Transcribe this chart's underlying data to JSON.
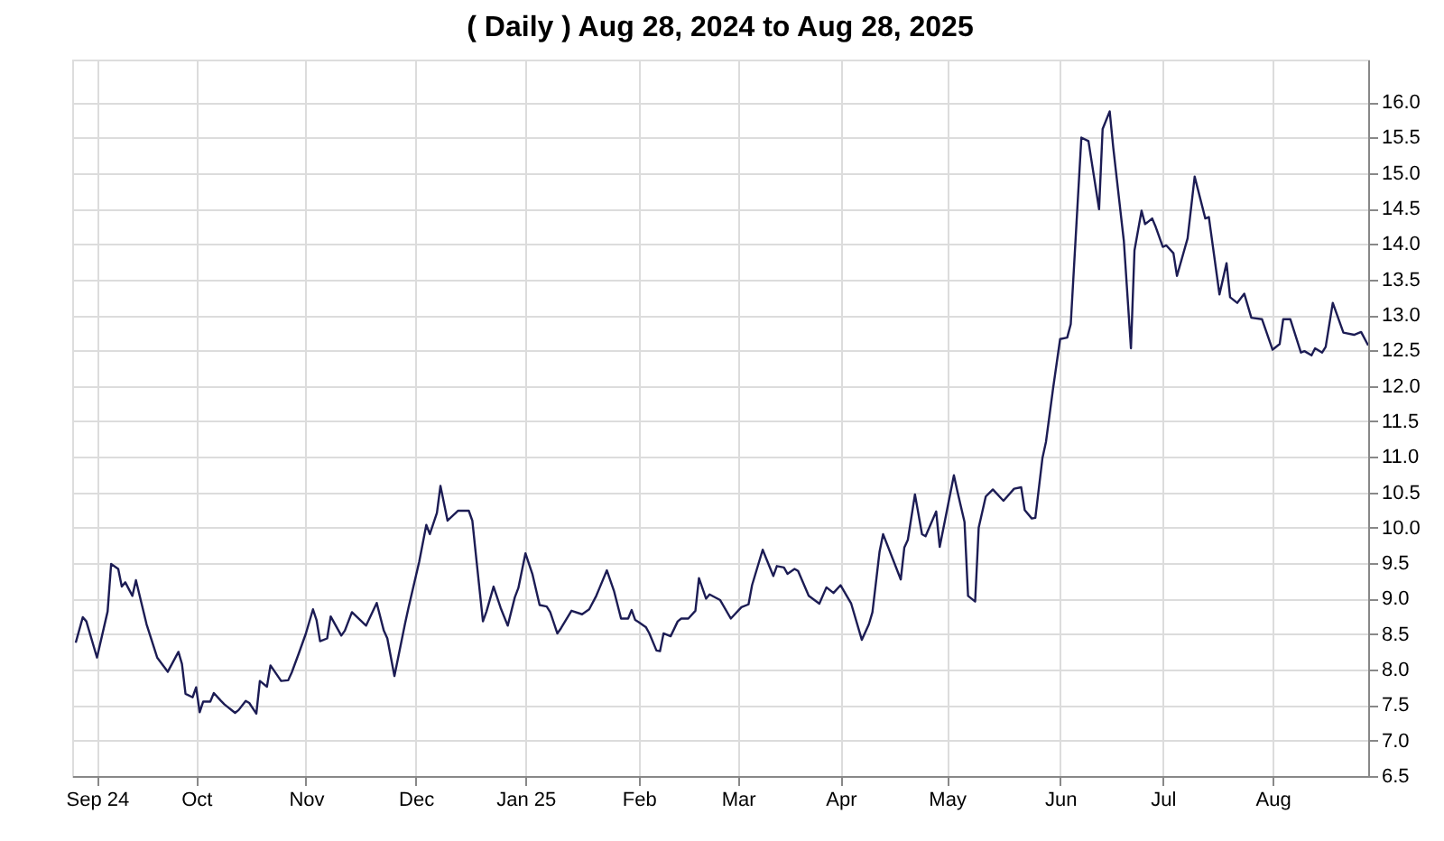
{
  "chart_data": {
    "type": "line",
    "title": "( Daily ) Aug 28, 2024 to Aug 28, 2025",
    "x": [
      "2024-08-28",
      "2024-08-30",
      "2024-08-31",
      "2024-09-03",
      "2024-09-06",
      "2024-09-07",
      "2024-09-09",
      "2024-09-10",
      "2024-09-11",
      "2024-09-13",
      "2024-09-14",
      "2024-09-17",
      "2024-09-20",
      "2024-09-23",
      "2024-09-26",
      "2024-09-27",
      "2024-09-28",
      "2024-09-30",
      "2024-10-01",
      "2024-10-02",
      "2024-10-03",
      "2024-10-05",
      "2024-10-06",
      "2024-10-08",
      "2024-10-09",
      "2024-10-12",
      "2024-10-13",
      "2024-10-15",
      "2024-10-16",
      "2024-10-18",
      "2024-10-19",
      "2024-10-21",
      "2024-10-22",
      "2024-10-25",
      "2024-10-27",
      "2024-10-28",
      "2024-10-30",
      "2024-11-01",
      "2024-11-03",
      "2024-11-04",
      "2024-11-05",
      "2024-11-07",
      "2024-11-08",
      "2024-11-11",
      "2024-11-12",
      "2024-11-14",
      "2024-11-18",
      "2024-11-21",
      "2024-11-23",
      "2024-11-24",
      "2024-11-26",
      "2024-11-29",
      "2024-11-30",
      "2024-12-03",
      "2024-12-05",
      "2024-12-06",
      "2024-12-08",
      "2024-12-09",
      "2024-12-11",
      "2024-12-14",
      "2024-12-17",
      "2024-12-18",
      "2024-12-19",
      "2024-12-21",
      "2024-12-22",
      "2024-12-24",
      "2024-12-26",
      "2024-12-28",
      "2024-12-30",
      "2024-12-31",
      "2025-01-02",
      "2025-01-04",
      "2025-01-06",
      "2025-01-08",
      "2025-01-09",
      "2025-01-11",
      "2025-01-12",
      "2025-01-15",
      "2025-01-18",
      "2025-01-20",
      "2025-01-22",
      "2025-01-23",
      "2025-01-25",
      "2025-01-27",
      "2025-01-29",
      "2025-01-31",
      "2025-02-01",
      "2025-02-02",
      "2025-02-03",
      "2025-02-05",
      "2025-02-06",
      "2025-02-08",
      "2025-02-09",
      "2025-02-10",
      "2025-02-12",
      "2025-02-14",
      "2025-02-15",
      "2025-02-17",
      "2025-02-19",
      "2025-02-20",
      "2025-02-22",
      "2025-02-23",
      "2025-02-26",
      "2025-03-01",
      "2025-03-04",
      "2025-03-06",
      "2025-03-07",
      "2025-03-10",
      "2025-03-13",
      "2025-03-14",
      "2025-03-16",
      "2025-03-17",
      "2025-03-19",
      "2025-03-20",
      "2025-03-23",
      "2025-03-26",
      "2025-03-28",
      "2025-03-30",
      "2025-04-01",
      "2025-04-04",
      "2025-04-07",
      "2025-04-09",
      "2025-04-10",
      "2025-04-12",
      "2025-04-13",
      "2025-04-18",
      "2025-04-19",
      "2025-04-20",
      "2025-04-22",
      "2025-04-24",
      "2025-04-25",
      "2025-04-28",
      "2025-04-29",
      "2025-05-03",
      "2025-05-04",
      "2025-05-06",
      "2025-05-07",
      "2025-05-09",
      "2025-05-10",
      "2025-05-12",
      "2025-05-14",
      "2025-05-17",
      "2025-05-20",
      "2025-05-22",
      "2025-05-23",
      "2025-05-25",
      "2025-05-26",
      "2025-05-28",
      "2025-05-29",
      "2025-05-31",
      "2025-06-02",
      "2025-06-04",
      "2025-06-05",
      "2025-06-08",
      "2025-06-10",
      "2025-06-13",
      "2025-06-14",
      "2025-06-16",
      "2025-06-17",
      "2025-06-20",
      "2025-06-22",
      "2025-06-23",
      "2025-06-25",
      "2025-06-26",
      "2025-06-28",
      "2025-06-29",
      "2025-07-01",
      "2025-07-02",
      "2025-07-04",
      "2025-07-05",
      "2025-07-08",
      "2025-07-10",
      "2025-07-13",
      "2025-07-14",
      "2025-07-17",
      "2025-07-19",
      "2025-07-20",
      "2025-07-22",
      "2025-07-24",
      "2025-07-26",
      "2025-07-29",
      "2025-08-01",
      "2025-08-03",
      "2025-08-04",
      "2025-08-06",
      "2025-08-09",
      "2025-08-10",
      "2025-08-12",
      "2025-08-13",
      "2025-08-15",
      "2025-08-16",
      "2025-08-18",
      "2025-08-21",
      "2025-08-24",
      "2025-08-26",
      "2025-08-28"
    ],
    "series": [
      {
        "color": "#1c1c54",
        "values": [
          8.38,
          8.74,
          8.68,
          8.17,
          8.82,
          9.49,
          9.42,
          9.17,
          9.23,
          9.04,
          9.26,
          8.64,
          8.17,
          7.97,
          8.25,
          8.08,
          7.66,
          7.61,
          7.75,
          7.4,
          7.55,
          7.55,
          7.67,
          7.56,
          7.51,
          7.39,
          7.43,
          7.56,
          7.53,
          7.38,
          7.84,
          7.76,
          8.06,
          7.84,
          7.85,
          7.96,
          8.23,
          8.51,
          8.85,
          8.7,
          8.4,
          8.44,
          8.75,
          8.48,
          8.55,
          8.81,
          8.62,
          8.94,
          8.55,
          8.44,
          7.91,
          8.65,
          8.88,
          9.52,
          10.04,
          9.91,
          10.21,
          10.59,
          10.1,
          10.24,
          10.24,
          10.1,
          9.62,
          8.68,
          8.82,
          9.17,
          8.87,
          8.62,
          9.02,
          9.15,
          9.64,
          9.34,
          8.91,
          8.89,
          8.81,
          8.51,
          8.58,
          8.83,
          8.78,
          8.85,
          9.04,
          9.16,
          9.4,
          9.11,
          8.72,
          8.72,
          8.84,
          8.7,
          8.67,
          8.6,
          8.51,
          8.27,
          8.26,
          8.51,
          8.47,
          8.68,
          8.72,
          8.72,
          8.83,
          9.29,
          9.0,
          9.06,
          8.98,
          8.72,
          8.88,
          8.92,
          9.19,
          9.69,
          9.32,
          9.46,
          9.44,
          9.35,
          9.42,
          9.39,
          9.04,
          8.93,
          9.16,
          9.08,
          9.19,
          8.93,
          8.42,
          8.64,
          8.81,
          9.66,
          9.91,
          9.27,
          9.72,
          9.83,
          10.47,
          9.91,
          9.88,
          10.23,
          9.73,
          10.74,
          10.51,
          10.08,
          9.04,
          8.96,
          10.0,
          10.44,
          10.54,
          10.38,
          10.55,
          10.57,
          10.25,
          10.13,
          10.14,
          10.98,
          11.21,
          11.96,
          12.66,
          12.68,
          12.87,
          15.5,
          15.45,
          14.49,
          15.62,
          15.87,
          15.36,
          14.04,
          12.53,
          13.91,
          14.47,
          14.28,
          14.36,
          14.24,
          13.96,
          13.98,
          13.87,
          13.55,
          14.08,
          14.95,
          14.36,
          14.38,
          13.29,
          13.73,
          13.25,
          13.17,
          13.3,
          12.96,
          12.94,
          12.51,
          12.59,
          12.94,
          12.94,
          12.47,
          12.49,
          12.43,
          12.53,
          12.47,
          12.55,
          13.17,
          12.75,
          12.72,
          12.76,
          12.57
        ]
      }
    ],
    "xlim": [
      "2024-08-27",
      "2025-08-28"
    ],
    "xticks": [
      {
        "value": "2024-09-03",
        "label": "Sep 24"
      },
      {
        "value": "2024-10-01",
        "label": "Oct"
      },
      {
        "value": "2024-11-01",
        "label": "Nov"
      },
      {
        "value": "2024-12-02",
        "label": "Dec"
      },
      {
        "value": "2025-01-02",
        "label": "Jan 25"
      },
      {
        "value": "2025-02-03",
        "label": "Feb"
      },
      {
        "value": "2025-03-03",
        "label": "Mar"
      },
      {
        "value": "2025-04-01",
        "label": "Apr"
      },
      {
        "value": "2025-05-01",
        "label": "May"
      },
      {
        "value": "2025-06-02",
        "label": "Jun"
      },
      {
        "value": "2025-07-01",
        "label": "Jul"
      },
      {
        "value": "2025-08-01",
        "label": "Aug"
      }
    ],
    "ylim": [
      6.5,
      16.6
    ],
    "yticks": [
      {
        "value": 6.5,
        "label": "6.5"
      },
      {
        "value": 7,
        "label": "7.0"
      },
      {
        "value": 7.5,
        "label": "7.5"
      },
      {
        "value": 8,
        "label": "8.0"
      },
      {
        "value": 8.5,
        "label": "8.5"
      },
      {
        "value": 9,
        "label": "9.0"
      },
      {
        "value": 9.5,
        "label": "9.5"
      },
      {
        "value": 10,
        "label": "10.0"
      },
      {
        "value": 10.5,
        "label": "10.5"
      },
      {
        "value": 11,
        "label": "11.0"
      },
      {
        "value": 11.5,
        "label": "11.5"
      },
      {
        "value": 12,
        "label": "12.0"
      },
      {
        "value": 12.5,
        "label": "12.5"
      },
      {
        "value": 13,
        "label": "13.0"
      },
      {
        "value": 13.5,
        "label": "13.5"
      },
      {
        "value": 14,
        "label": "14.0"
      },
      {
        "value": 14.5,
        "label": "14.5"
      },
      {
        "value": 15,
        "label": "15.0"
      },
      {
        "value": 15.5,
        "label": "15.5"
      },
      {
        "value": 16,
        "label": "16.0"
      }
    ],
    "grid": true,
    "marker": "none",
    "line_style": "solid"
  }
}
